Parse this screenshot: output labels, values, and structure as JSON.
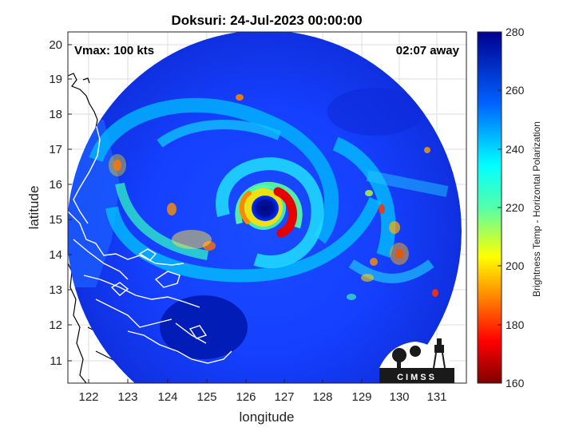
{
  "title": "Doksuri: 24-Jul-2023 00:00:00",
  "vmax_label": "Vmax: 100 kts",
  "time_away_label": "02:07 away",
  "x_axis": {
    "label": "longitude",
    "ticks": [
      "122",
      "123",
      "124",
      "125",
      "126",
      "127",
      "128",
      "129",
      "130",
      "131"
    ]
  },
  "y_axis": {
    "label": "latitude",
    "ticks": [
      "11",
      "12",
      "13",
      "14",
      "15",
      "16",
      "17",
      "18",
      "19",
      "20"
    ]
  },
  "colorbar": {
    "label": "Brightness Temp - Horizontal Polarization",
    "ticks": [
      "160",
      "180",
      "200",
      "220",
      "240",
      "260",
      "280"
    ],
    "range": [
      160,
      280
    ],
    "colormap": "jet"
  },
  "logo": {
    "text": "CIMSS"
  },
  "colors": {
    "background_field": "#1238ff",
    "eye_center": "#000a78",
    "deep_blue": "#0014a0",
    "eyewall": "#e60000",
    "coastline": "#ffffff"
  },
  "map_data": {
    "lon_range": [
      121.4,
      131.8
    ],
    "lat_range": [
      10.4,
      20.3
    ],
    "storm_center": {
      "lon": 126.4,
      "lat": 15.1
    },
    "grid": true
  }
}
